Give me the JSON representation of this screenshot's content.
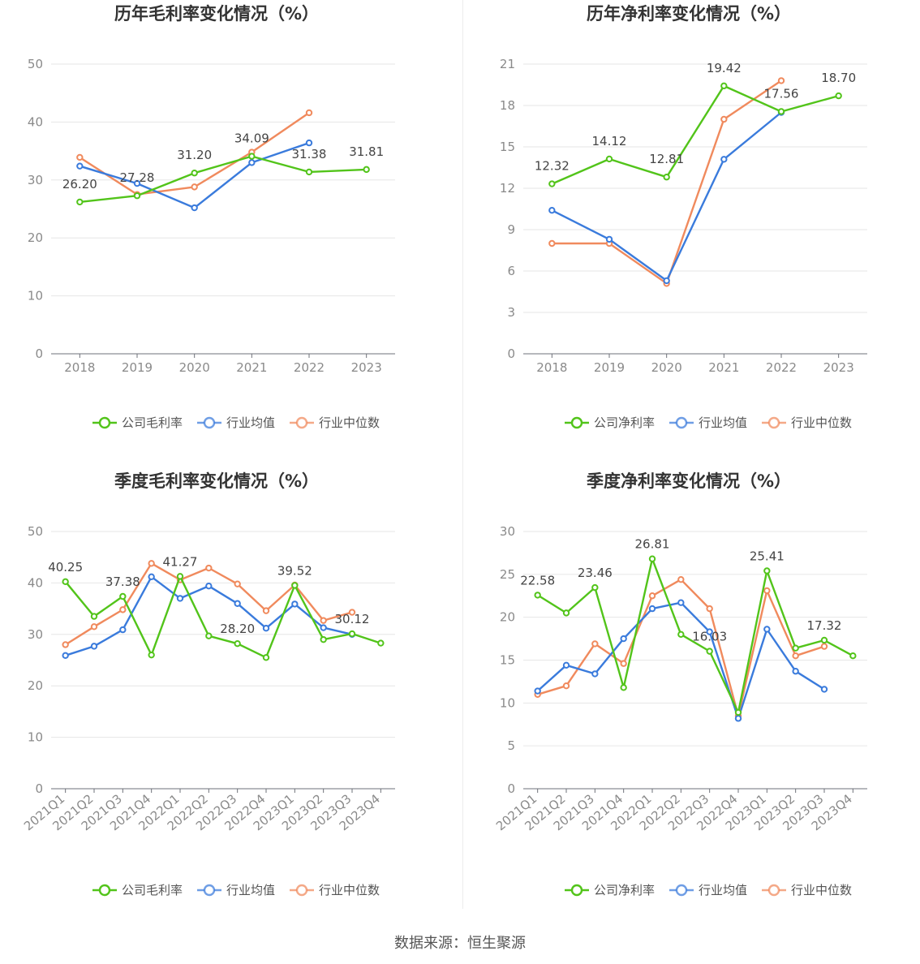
{
  "footer": "数据来源：恒生聚源",
  "legend_colors": {
    "company": "#52c41a",
    "avg": "#3a7bdc",
    "median": "#f08a5d"
  },
  "chart_data": [
    {
      "id": "annual-gross",
      "type": "line",
      "title": "历年毛利率变化情况（%）",
      "categories": [
        "2018",
        "2019",
        "2020",
        "2021",
        "2022",
        "2023"
      ],
      "ylim": [
        0,
        50
      ],
      "yticks": [
        0,
        10,
        20,
        30,
        40,
        50
      ],
      "grid": true,
      "legend_position": "bottom",
      "series": [
        {
          "name": "公司毛利率",
          "color": "#52c41a",
          "values": [
            26.2,
            27.28,
            31.2,
            34.09,
            31.38,
            31.81
          ],
          "labels": [
            "26.20",
            "27.28",
            "31.20",
            "34.09",
            "31.38",
            "31.81"
          ]
        },
        {
          "name": "行业均值",
          "color": "#3a7bdc",
          "values": [
            32.4,
            29.4,
            25.2,
            33.0,
            36.4,
            null
          ]
        },
        {
          "name": "行业中位数",
          "color": "#f08a5d",
          "values": [
            33.9,
            27.5,
            28.8,
            34.8,
            41.6,
            null
          ]
        }
      ]
    },
    {
      "id": "annual-net",
      "type": "line",
      "title": "历年净利率变化情况（%）",
      "categories": [
        "2018",
        "2019",
        "2020",
        "2021",
        "2022",
        "2023"
      ],
      "ylim": [
        0,
        21
      ],
      "yticks": [
        0,
        3,
        6,
        9,
        12,
        15,
        18,
        21
      ],
      "grid": true,
      "legend_position": "bottom",
      "series": [
        {
          "name": "公司净利率",
          "color": "#52c41a",
          "values": [
            12.32,
            14.12,
            12.81,
            19.42,
            17.56,
            18.7
          ],
          "labels": [
            "12.32",
            "14.12",
            "12.81",
            "19.42",
            "17.56",
            "18.70"
          ]
        },
        {
          "name": "行业均值",
          "color": "#3a7bdc",
          "values": [
            10.4,
            8.3,
            5.3,
            14.1,
            17.5,
            null
          ]
        },
        {
          "name": "行业中位数",
          "color": "#f08a5d",
          "values": [
            8.0,
            8.0,
            5.1,
            17.0,
            19.8,
            null
          ]
        }
      ]
    },
    {
      "id": "quarterly-gross",
      "type": "line",
      "title": "季度毛利率变化情况（%）",
      "categories": [
        "2021Q1",
        "2021Q2",
        "2021Q3",
        "2021Q4",
        "2022Q1",
        "2022Q2",
        "2022Q3",
        "2022Q4",
        "2023Q1",
        "2023Q2",
        "2023Q3",
        "2023Q4"
      ],
      "ylim": [
        0,
        50
      ],
      "yticks": [
        0,
        10,
        20,
        30,
        40,
        50
      ],
      "grid": true,
      "legend_position": "bottom",
      "series": [
        {
          "name": "公司毛利率",
          "color": "#52c41a",
          "values": [
            40.25,
            33.5,
            37.38,
            26.0,
            41.27,
            29.7,
            28.2,
            25.5,
            39.52,
            29.0,
            30.12,
            28.3
          ],
          "labels": [
            "40.25",
            "",
            "37.38",
            "",
            "41.27",
            "",
            "28.20",
            "",
            "39.52",
            "",
            "30.12",
            ""
          ]
        },
        {
          "name": "行业均值",
          "color": "#3a7bdc",
          "values": [
            25.9,
            27.7,
            30.9,
            41.2,
            37.0,
            39.4,
            36.0,
            31.2,
            35.9,
            31.3,
            30.0,
            null
          ]
        },
        {
          "name": "行业中位数",
          "color": "#f08a5d",
          "values": [
            28.0,
            31.5,
            34.8,
            43.8,
            40.6,
            42.9,
            39.8,
            34.6,
            39.6,
            32.7,
            34.3,
            null
          ]
        }
      ]
    },
    {
      "id": "quarterly-net",
      "type": "line",
      "title": "季度净利率变化情况（%）",
      "categories": [
        "2021Q1",
        "2021Q2",
        "2021Q3",
        "2021Q4",
        "2022Q1",
        "2022Q2",
        "2022Q3",
        "2022Q4",
        "2023Q1",
        "2023Q2",
        "2023Q3",
        "2023Q4"
      ],
      "ylim": [
        0,
        30
      ],
      "yticks": [
        0,
        5,
        10,
        15,
        20,
        25,
        30
      ],
      "grid": true,
      "legend_position": "bottom",
      "series": [
        {
          "name": "公司净利率",
          "color": "#52c41a",
          "values": [
            22.58,
            20.5,
            23.46,
            11.8,
            26.81,
            18.0,
            16.03,
            8.9,
            25.41,
            16.4,
            17.32,
            15.5
          ],
          "labels": [
            "22.58",
            "",
            "23.46",
            "",
            "26.81",
            "",
            "16.03",
            "",
            "25.41",
            "",
            "17.32",
            ""
          ]
        },
        {
          "name": "行业均值",
          "color": "#3a7bdc",
          "values": [
            11.4,
            14.4,
            13.4,
            17.5,
            21.0,
            21.7,
            18.3,
            8.2,
            18.6,
            13.7,
            11.6,
            null
          ]
        },
        {
          "name": "行业中位数",
          "color": "#f08a5d",
          "values": [
            11.0,
            12.0,
            16.9,
            14.6,
            22.5,
            24.4,
            21.0,
            8.5,
            23.1,
            15.5,
            16.6,
            null
          ]
        }
      ]
    }
  ]
}
